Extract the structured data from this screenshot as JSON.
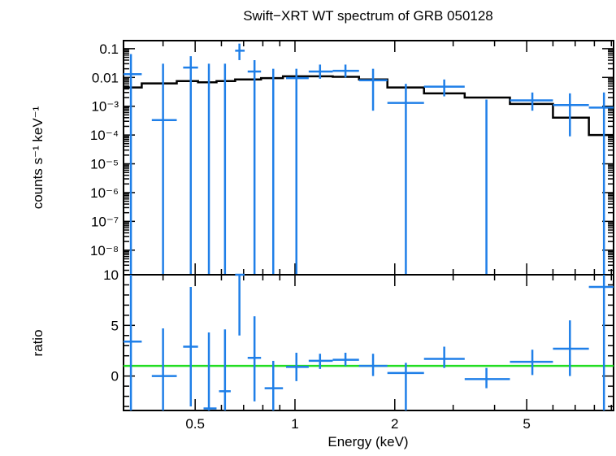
{
  "chart_data": [
    {
      "type": "scatter",
      "panel": "spectrum",
      "title": "Swift−XRT WT spectrum of GRB 050128",
      "xlabel": "Energy (keV)",
      "ylabel": "counts s⁻¹ keV⁻¹",
      "xscale": "log",
      "yscale": "log",
      "xlim": [
        0.304,
        9.14
      ],
      "ylim": [
        1.4e-09,
        0.19
      ],
      "ytick_labels": [
        {
          "value": 0.1,
          "label": "0.1"
        },
        {
          "value": 0.01,
          "label": "0.01"
        },
        {
          "value": 0.001,
          "label": "10⁻³"
        },
        {
          "value": 0.0001,
          "label": "10⁻⁴"
        },
        {
          "value": 1e-05,
          "label": "10⁻⁵"
        },
        {
          "value": 1e-06,
          "label": "10⁻⁶"
        },
        {
          "value": 1e-07,
          "label": "10⁻⁷"
        },
        {
          "value": 1e-08,
          "label": "10⁻⁸"
        }
      ],
      "series": [
        {
          "name": "data",
          "color": "#1f7fe8",
          "points": [
            {
              "x": 0.32,
              "xlo": 0.304,
              "xhi": 0.345,
              "y": 0.013,
              "ylo": 1.4e-09,
              "yhi": 0.065
            },
            {
              "x": 0.4,
              "xlo": 0.37,
              "xhi": 0.44,
              "y": 0.00033,
              "ylo": 1.4e-09,
              "yhi": 0.03
            },
            {
              "x": 0.485,
              "xlo": 0.46,
              "xhi": 0.51,
              "y": 0.022,
              "ylo": 1.4e-09,
              "yhi": 0.055
            },
            {
              "x": 0.55,
              "xlo": 0.52,
              "xhi": 0.58,
              "y": 0.0,
              "ylo": 1.4e-09,
              "yhi": 0.03
            },
            {
              "x": 0.615,
              "xlo": 0.59,
              "xhi": 0.64,
              "y": 0.0,
              "ylo": 1.4e-09,
              "yhi": 0.03
            },
            {
              "x": 0.68,
              "xlo": 0.66,
              "xhi": 0.705,
              "y": 0.085,
              "ylo": 0.04,
              "yhi": 0.15
            },
            {
              "x": 0.755,
              "xlo": 0.72,
              "xhi": 0.79,
              "y": 0.016,
              "ylo": 1.4e-09,
              "yhi": 0.04
            },
            {
              "x": 0.86,
              "xlo": 0.81,
              "xhi": 0.92,
              "y": 0.0,
              "ylo": 1.4e-09,
              "yhi": 0.02
            },
            {
              "x": 1.01,
              "xlo": 0.94,
              "xhi": 1.1,
              "y": 0.0095,
              "ylo": 1.4e-09,
              "yhi": 0.02
            },
            {
              "x": 1.19,
              "xlo": 1.1,
              "xhi": 1.3,
              "y": 0.016,
              "ylo": 0.009,
              "yhi": 0.028
            },
            {
              "x": 1.42,
              "xlo": 1.3,
              "xhi": 1.56,
              "y": 0.017,
              "ylo": 0.01,
              "yhi": 0.028
            },
            {
              "x": 1.72,
              "xlo": 1.56,
              "xhi": 1.9,
              "y": 0.008,
              "ylo": 0.0007,
              "yhi": 0.02
            },
            {
              "x": 2.16,
              "xlo": 1.9,
              "xhi": 2.45,
              "y": 0.0013,
              "ylo": 1.4e-09,
              "yhi": 0.006
            },
            {
              "x": 2.82,
              "xlo": 2.45,
              "xhi": 3.25,
              "y": 0.0048,
              "ylo": 0.0022,
              "yhi": 0.0085
            },
            {
              "x": 3.78,
              "xlo": 3.25,
              "xhi": 4.45,
              "y": 0.0,
              "ylo": 1.4e-09,
              "yhi": 0.0017
            },
            {
              "x": 5.2,
              "xlo": 4.45,
              "xhi": 6.0,
              "y": 0.0016,
              "ylo": 0.0007,
              "yhi": 0.003
            },
            {
              "x": 6.75,
              "xlo": 6.0,
              "xhi": 7.7,
              "y": 0.0011,
              "ylo": 9e-05,
              "yhi": 0.0028
            },
            {
              "x": 8.55,
              "xlo": 7.7,
              "xhi": 9.14,
              "y": 0.0009,
              "ylo": 1.4e-09,
              "yhi": 0.003
            }
          ]
        },
        {
          "name": "model",
          "color": "#000000",
          "type": "step",
          "steps": [
            {
              "xlo": 0.304,
              "xhi": 0.345,
              "y": 0.0045
            },
            {
              "xlo": 0.345,
              "xhi": 0.44,
              "y": 0.0062
            },
            {
              "xlo": 0.44,
              "xhi": 0.51,
              "y": 0.0075
            },
            {
              "xlo": 0.51,
              "xhi": 0.58,
              "y": 0.0068
            },
            {
              "xlo": 0.58,
              "xhi": 0.66,
              "y": 0.0075
            },
            {
              "xlo": 0.66,
              "xhi": 0.79,
              "y": 0.0085
            },
            {
              "xlo": 0.79,
              "xhi": 0.92,
              "y": 0.0095
            },
            {
              "xlo": 0.92,
              "xhi": 1.1,
              "y": 0.011
            },
            {
              "xlo": 1.1,
              "xhi": 1.3,
              "y": 0.011
            },
            {
              "xlo": 1.3,
              "xhi": 1.56,
              "y": 0.0105
            },
            {
              "xlo": 1.56,
              "xhi": 1.9,
              "y": 0.0085
            },
            {
              "xlo": 1.9,
              "xhi": 2.45,
              "y": 0.0045
            },
            {
              "xlo": 2.45,
              "xhi": 3.25,
              "y": 0.0028
            },
            {
              "xlo": 3.25,
              "xhi": 4.45,
              "y": 0.002
            },
            {
              "xlo": 4.45,
              "xhi": 6.0,
              "y": 0.0012
            },
            {
              "xlo": 6.0,
              "xhi": 7.7,
              "y": 0.0004
            },
            {
              "xlo": 7.7,
              "xhi": 9.14,
              "y": 0.0001
            }
          ]
        }
      ]
    },
    {
      "type": "scatter",
      "panel": "ratio",
      "xlabel": "Energy (keV)",
      "ylabel": "ratio",
      "xscale": "log",
      "yscale": "linear",
      "xlim": [
        0.304,
        9.14
      ],
      "ylim": [
        -3.4,
        10
      ],
      "xtick_labels": [
        {
          "value": 0.5,
          "label": "0.5"
        },
        {
          "value": 1,
          "label": "1"
        },
        {
          "value": 2,
          "label": "2"
        },
        {
          "value": 5,
          "label": "5"
        }
      ],
      "ytick_labels": [
        {
          "value": 0,
          "label": "0"
        },
        {
          "value": 5,
          "label": "5"
        },
        {
          "value": 10,
          "label": "10"
        }
      ],
      "reference_line": {
        "y": 1,
        "color": "#22dd22"
      },
      "series": [
        {
          "name": "ratio",
          "color": "#1f7fe8",
          "points": [
            {
              "x": 0.32,
              "xlo": 0.304,
              "xhi": 0.345,
              "y": 3.4,
              "ylo": -3.4,
              "yhi": 10
            },
            {
              "x": 0.4,
              "xlo": 0.37,
              "xhi": 0.44,
              "y": 0.0,
              "ylo": -3.4,
              "yhi": 4.7
            },
            {
              "x": 0.485,
              "xlo": 0.46,
              "xhi": 0.51,
              "y": 2.9,
              "ylo": -3.0,
              "yhi": 8.8
            },
            {
              "x": 0.55,
              "xlo": 0.53,
              "xhi": 0.58,
              "y": -3.2,
              "ylo": -3.4,
              "yhi": 4.3
            },
            {
              "x": 0.615,
              "xlo": 0.59,
              "xhi": 0.64,
              "y": -1.5,
              "ylo": -3.4,
              "yhi": 4.6
            },
            {
              "x": 0.68,
              "xlo": 0.66,
              "xhi": 0.705,
              "y": 10,
              "ylo": 4.0,
              "yhi": 10
            },
            {
              "x": 0.755,
              "xlo": 0.72,
              "xhi": 0.79,
              "y": 1.8,
              "ylo": -2.5,
              "yhi": 5.9
            },
            {
              "x": 0.86,
              "xlo": 0.81,
              "xhi": 0.92,
              "y": -1.2,
              "ylo": -3.4,
              "yhi": 1.5
            },
            {
              "x": 1.01,
              "xlo": 0.94,
              "xhi": 1.1,
              "y": 0.9,
              "ylo": -0.5,
              "yhi": 2.3
            },
            {
              "x": 1.19,
              "xlo": 1.1,
              "xhi": 1.3,
              "y": 1.5,
              "ylo": 0.7,
              "yhi": 2.2
            },
            {
              "x": 1.42,
              "xlo": 1.3,
              "xhi": 1.56,
              "y": 1.6,
              "ylo": 1.0,
              "yhi": 2.3
            },
            {
              "x": 1.72,
              "xlo": 1.56,
              "xhi": 1.9,
              "y": 1.0,
              "ylo": 0.0,
              "yhi": 2.2
            },
            {
              "x": 2.16,
              "xlo": 1.9,
              "xhi": 2.45,
              "y": 0.3,
              "ylo": -3.4,
              "yhi": 1.3
            },
            {
              "x": 2.82,
              "xlo": 2.45,
              "xhi": 3.25,
              "y": 1.7,
              "ylo": 0.8,
              "yhi": 2.9
            },
            {
              "x": 3.78,
              "xlo": 3.25,
              "xhi": 4.45,
              "y": -0.3,
              "ylo": -1.2,
              "yhi": 0.8
            },
            {
              "x": 5.2,
              "xlo": 4.45,
              "xhi": 6.0,
              "y": 1.4,
              "ylo": 0.1,
              "yhi": 2.6
            },
            {
              "x": 6.75,
              "xlo": 6.0,
              "xhi": 7.7,
              "y": 2.7,
              "ylo": 0.0,
              "yhi": 5.5
            },
            {
              "x": 8.55,
              "xlo": 7.7,
              "xhi": 9.14,
              "y": 8.8,
              "ylo": -3.4,
              "yhi": 10
            }
          ]
        }
      ]
    }
  ]
}
